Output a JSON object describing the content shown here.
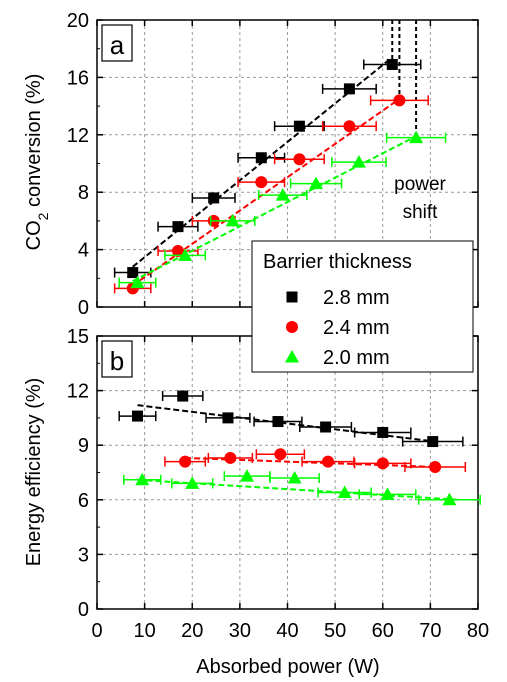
{
  "chart_data": [
    {
      "type": "scatter",
      "panel_label": "a",
      "ylabel": "CO₂ conversion (%)",
      "ylabel_parts": {
        "pre": "CO",
        "sub": "2",
        "post": " conversion (%)"
      },
      "xlabel": "",
      "xlim": [
        0,
        80
      ],
      "ylim": [
        0,
        20
      ],
      "yticks": [
        "0",
        "4",
        "8",
        "12",
        "16",
        "20"
      ],
      "xticks": [
        "0",
        "10",
        "20",
        "30",
        "40",
        "50",
        "60",
        "70",
        "80"
      ],
      "grid": true,
      "annotation": {
        "line1": "power",
        "line2": "shift"
      },
      "series": [
        {
          "name": "2.8 mm",
          "color": "#000000",
          "marker": "square",
          "x": [
            7.5,
            17,
            24.5,
            34.5,
            42.5,
            53,
            62
          ],
          "y": [
            2.4,
            5.6,
            7.6,
            10.4,
            12.6,
            15.2,
            16.9
          ],
          "fit": [
            [
              7.5,
              2.8
            ],
            [
              62,
              17.4
            ]
          ]
        },
        {
          "name": "2.4 mm",
          "color": "#ff0000",
          "marker": "circle",
          "x": [
            7.5,
            17,
            24.5,
            34.5,
            42.5,
            53,
            63.5
          ],
          "y": [
            1.3,
            3.9,
            6.0,
            8.7,
            10.3,
            12.6,
            14.4
          ],
          "fit": [
            [
              7.5,
              1.5
            ],
            [
              63.5,
              14.5
            ]
          ]
        },
        {
          "name": "2.0 mm",
          "color": "#00ff00",
          "marker": "triangle",
          "x": [
            8.5,
            18.5,
            28.5,
            39,
            46,
            55,
            67
          ],
          "y": [
            1.7,
            3.6,
            6.0,
            7.8,
            8.6,
            10.1,
            11.8
          ],
          "fit": [
            [
              7.5,
              1.8
            ],
            [
              67,
              11.9
            ]
          ]
        }
      ]
    },
    {
      "type": "scatter",
      "panel_label": "b",
      "ylabel": "Energy efficiency (%)",
      "xlabel": "Absorbed power (W)",
      "xlim": [
        0,
        80
      ],
      "ylim": [
        0,
        15
      ],
      "yticks": [
        "0",
        "3",
        "6",
        "9",
        "12",
        "15"
      ],
      "xticks": [
        "0",
        "10",
        "20",
        "30",
        "40",
        "50",
        "60",
        "70",
        "80"
      ],
      "grid": true,
      "legend": {
        "title": "Barrier thickness",
        "placement": "upper-right"
      },
      "series": [
        {
          "name": "2.8 mm",
          "color": "#000000",
          "marker": "square",
          "x": [
            8.5,
            18,
            27.5,
            38,
            48,
            60,
            70.5
          ],
          "y": [
            10.6,
            11.7,
            10.5,
            10.3,
            10.0,
            9.7,
            9.2
          ],
          "fit": [
            [
              8.5,
              11.2
            ],
            [
              71,
              9.2
            ]
          ]
        },
        {
          "name": "2.4 mm",
          "color": "#ff0000",
          "marker": "circle",
          "x": [
            18.5,
            28,
            38.5,
            48.5,
            60,
            71
          ],
          "y": [
            8.1,
            8.3,
            8.5,
            8.1,
            8.0,
            7.8
          ],
          "fit": [
            [
              18.5,
              8.3
            ],
            [
              71.5,
              7.8
            ]
          ]
        },
        {
          "name": "2.0 mm",
          "color": "#00ff00",
          "marker": "triangle",
          "x": [
            9.5,
            20,
            31.5,
            41.5,
            52,
            61,
            74
          ],
          "y": [
            7.1,
            6.9,
            7.3,
            7.2,
            6.4,
            6.3,
            6.0
          ],
          "fit": [
            [
              8.5,
              7.1
            ],
            [
              76,
              6.0
            ]
          ]
        }
      ]
    }
  ]
}
